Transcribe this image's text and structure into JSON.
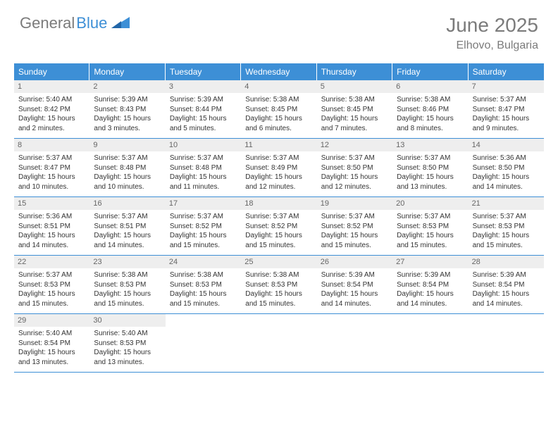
{
  "brand": {
    "part1": "General",
    "part2": "Blue"
  },
  "title": "June 2025",
  "location": "Elhovo, Bulgaria",
  "colors": {
    "header_bg": "#3d8fd6",
    "header_text": "#ffffff",
    "daynum_bg": "#eeeeee",
    "brand_grey": "#7b7b7b",
    "brand_blue": "#3d8fd6"
  },
  "day_names": [
    "Sunday",
    "Monday",
    "Tuesday",
    "Wednesday",
    "Thursday",
    "Friday",
    "Saturday"
  ],
  "days": [
    {
      "n": "1",
      "sr": "Sunrise: 5:40 AM",
      "ss": "Sunset: 8:42 PM",
      "d1": "Daylight: 15 hours",
      "d2": "and 2 minutes."
    },
    {
      "n": "2",
      "sr": "Sunrise: 5:39 AM",
      "ss": "Sunset: 8:43 PM",
      "d1": "Daylight: 15 hours",
      "d2": "and 3 minutes."
    },
    {
      "n": "3",
      "sr": "Sunrise: 5:39 AM",
      "ss": "Sunset: 8:44 PM",
      "d1": "Daylight: 15 hours",
      "d2": "and 5 minutes."
    },
    {
      "n": "4",
      "sr": "Sunrise: 5:38 AM",
      "ss": "Sunset: 8:45 PM",
      "d1": "Daylight: 15 hours",
      "d2": "and 6 minutes."
    },
    {
      "n": "5",
      "sr": "Sunrise: 5:38 AM",
      "ss": "Sunset: 8:45 PM",
      "d1": "Daylight: 15 hours",
      "d2": "and 7 minutes."
    },
    {
      "n": "6",
      "sr": "Sunrise: 5:38 AM",
      "ss": "Sunset: 8:46 PM",
      "d1": "Daylight: 15 hours",
      "d2": "and 8 minutes."
    },
    {
      "n": "7",
      "sr": "Sunrise: 5:37 AM",
      "ss": "Sunset: 8:47 PM",
      "d1": "Daylight: 15 hours",
      "d2": "and 9 minutes."
    },
    {
      "n": "8",
      "sr": "Sunrise: 5:37 AM",
      "ss": "Sunset: 8:47 PM",
      "d1": "Daylight: 15 hours",
      "d2": "and 10 minutes."
    },
    {
      "n": "9",
      "sr": "Sunrise: 5:37 AM",
      "ss": "Sunset: 8:48 PM",
      "d1": "Daylight: 15 hours",
      "d2": "and 10 minutes."
    },
    {
      "n": "10",
      "sr": "Sunrise: 5:37 AM",
      "ss": "Sunset: 8:48 PM",
      "d1": "Daylight: 15 hours",
      "d2": "and 11 minutes."
    },
    {
      "n": "11",
      "sr": "Sunrise: 5:37 AM",
      "ss": "Sunset: 8:49 PM",
      "d1": "Daylight: 15 hours",
      "d2": "and 12 minutes."
    },
    {
      "n": "12",
      "sr": "Sunrise: 5:37 AM",
      "ss": "Sunset: 8:50 PM",
      "d1": "Daylight: 15 hours",
      "d2": "and 12 minutes."
    },
    {
      "n": "13",
      "sr": "Sunrise: 5:37 AM",
      "ss": "Sunset: 8:50 PM",
      "d1": "Daylight: 15 hours",
      "d2": "and 13 minutes."
    },
    {
      "n": "14",
      "sr": "Sunrise: 5:36 AM",
      "ss": "Sunset: 8:50 PM",
      "d1": "Daylight: 15 hours",
      "d2": "and 14 minutes."
    },
    {
      "n": "15",
      "sr": "Sunrise: 5:36 AM",
      "ss": "Sunset: 8:51 PM",
      "d1": "Daylight: 15 hours",
      "d2": "and 14 minutes."
    },
    {
      "n": "16",
      "sr": "Sunrise: 5:37 AM",
      "ss": "Sunset: 8:51 PM",
      "d1": "Daylight: 15 hours",
      "d2": "and 14 minutes."
    },
    {
      "n": "17",
      "sr": "Sunrise: 5:37 AM",
      "ss": "Sunset: 8:52 PM",
      "d1": "Daylight: 15 hours",
      "d2": "and 15 minutes."
    },
    {
      "n": "18",
      "sr": "Sunrise: 5:37 AM",
      "ss": "Sunset: 8:52 PM",
      "d1": "Daylight: 15 hours",
      "d2": "and 15 minutes."
    },
    {
      "n": "19",
      "sr": "Sunrise: 5:37 AM",
      "ss": "Sunset: 8:52 PM",
      "d1": "Daylight: 15 hours",
      "d2": "and 15 minutes."
    },
    {
      "n": "20",
      "sr": "Sunrise: 5:37 AM",
      "ss": "Sunset: 8:53 PM",
      "d1": "Daylight: 15 hours",
      "d2": "and 15 minutes."
    },
    {
      "n": "21",
      "sr": "Sunrise: 5:37 AM",
      "ss": "Sunset: 8:53 PM",
      "d1": "Daylight: 15 hours",
      "d2": "and 15 minutes."
    },
    {
      "n": "22",
      "sr": "Sunrise: 5:37 AM",
      "ss": "Sunset: 8:53 PM",
      "d1": "Daylight: 15 hours",
      "d2": "and 15 minutes."
    },
    {
      "n": "23",
      "sr": "Sunrise: 5:38 AM",
      "ss": "Sunset: 8:53 PM",
      "d1": "Daylight: 15 hours",
      "d2": "and 15 minutes."
    },
    {
      "n": "24",
      "sr": "Sunrise: 5:38 AM",
      "ss": "Sunset: 8:53 PM",
      "d1": "Daylight: 15 hours",
      "d2": "and 15 minutes."
    },
    {
      "n": "25",
      "sr": "Sunrise: 5:38 AM",
      "ss": "Sunset: 8:53 PM",
      "d1": "Daylight: 15 hours",
      "d2": "and 15 minutes."
    },
    {
      "n": "26",
      "sr": "Sunrise: 5:39 AM",
      "ss": "Sunset: 8:54 PM",
      "d1": "Daylight: 15 hours",
      "d2": "and 14 minutes."
    },
    {
      "n": "27",
      "sr": "Sunrise: 5:39 AM",
      "ss": "Sunset: 8:54 PM",
      "d1": "Daylight: 15 hours",
      "d2": "and 14 minutes."
    },
    {
      "n": "28",
      "sr": "Sunrise: 5:39 AM",
      "ss": "Sunset: 8:54 PM",
      "d1": "Daylight: 15 hours",
      "d2": "and 14 minutes."
    },
    {
      "n": "29",
      "sr": "Sunrise: 5:40 AM",
      "ss": "Sunset: 8:54 PM",
      "d1": "Daylight: 15 hours",
      "d2": "and 13 minutes."
    },
    {
      "n": "30",
      "sr": "Sunrise: 5:40 AM",
      "ss": "Sunset: 8:53 PM",
      "d1": "Daylight: 15 hours",
      "d2": "and 13 minutes."
    }
  ]
}
